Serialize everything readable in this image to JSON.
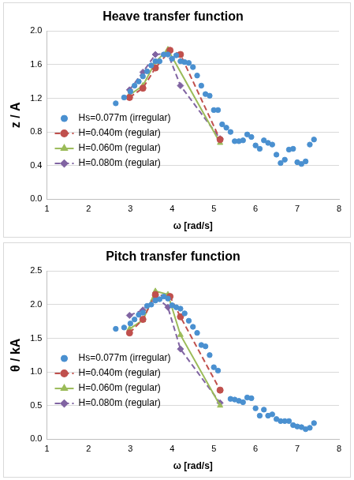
{
  "chart_data": [
    {
      "type": "scatter",
      "title": "Heave transfer function",
      "x_label": "ω [rad/s]",
      "y_label": "z / A",
      "xlim": [
        1,
        8
      ],
      "xticks": [
        1,
        2,
        3,
        4,
        5,
        6,
        7,
        8
      ],
      "ylim": [
        0,
        2
      ],
      "yticks": [
        {
          "value": 0,
          "label": "0.0"
        },
        0.4,
        0.8,
        1.2,
        1.6,
        {
          "value": 2,
          "label": "2.0"
        }
      ],
      "grid": "y",
      "legend": "lower left",
      "series": [
        {
          "name": "Hs=0.077m (irregular)",
          "type": "scatter",
          "color": "#4a90d0",
          "marker": "circle",
          "line_style": "none",
          "x": [
            2.65,
            2.85,
            3.0,
            3.1,
            3.2,
            3.3,
            3.4,
            3.5,
            3.6,
            3.7,
            3.8,
            3.9,
            4.0,
            4.1,
            4.2,
            4.3,
            4.4,
            4.5,
            4.6,
            4.7,
            4.8,
            4.9,
            5.0,
            5.1,
            5.2,
            5.3,
            5.4,
            5.5,
            5.6,
            5.7,
            5.8,
            5.9,
            6.0,
            6.1,
            6.2,
            6.3,
            6.4,
            6.5,
            6.6,
            6.7,
            6.8,
            6.9,
            7.0,
            7.1,
            7.2,
            7.3,
            7.4
          ],
          "values": [
            1.14,
            1.21,
            1.28,
            1.35,
            1.4,
            1.46,
            1.52,
            1.59,
            1.64,
            1.64,
            1.72,
            1.72,
            1.67,
            1.71,
            1.64,
            1.63,
            1.62,
            1.57,
            1.47,
            1.35,
            1.25,
            1.23,
            1.06,
            1.06,
            0.89,
            0.85,
            0.8,
            0.69,
            0.69,
            0.7,
            0.77,
            0.74,
            0.64,
            0.6,
            0.7,
            0.67,
            0.65,
            0.53,
            0.43,
            0.47,
            0.59,
            0.6,
            0.44,
            0.42,
            0.45,
            0.65,
            0.71
          ]
        },
        {
          "name": "H=0.040m (regular)",
          "type": "line",
          "color": "#c0504d",
          "marker": "circle",
          "line_style": "dashed",
          "x": [
            2.98,
            3.3,
            3.6,
            3.95,
            4.2,
            5.15
          ],
          "values": [
            1.21,
            1.32,
            1.56,
            1.77,
            1.72,
            0.71
          ]
        },
        {
          "name": "H=0.060m (regular)",
          "type": "line",
          "color": "#9bbb59",
          "marker": "triangle",
          "line_style": "solid",
          "x": [
            2.98,
            3.3,
            3.6,
            3.9,
            5.15
          ],
          "values": [
            1.24,
            1.35,
            1.63,
            1.78,
            0.67
          ]
        },
        {
          "name": "H=0.080m (regular)",
          "type": "line",
          "color": "#8064a2",
          "marker": "diamond",
          "line_style": "dashed",
          "x": [
            2.98,
            3.3,
            3.6,
            3.9,
            4.2,
            5.15
          ],
          "values": [
            1.3,
            1.51,
            1.72,
            1.73,
            1.35,
            0.72
          ]
        }
      ]
    },
    {
      "type": "scatter",
      "title": "Pitch transfer function",
      "x_label": "ω [rad/s]",
      "y_label": "θ / kA",
      "xlim": [
        1,
        8
      ],
      "xticks": [
        1,
        2,
        3,
        4,
        5,
        6,
        7,
        8
      ],
      "ylim": [
        0,
        2.5
      ],
      "yticks": [
        {
          "value": 0,
          "label": "0.0"
        },
        0.5,
        {
          "value": 1,
          "label": "1.0"
        },
        1.5,
        {
          "value": 2,
          "label": "2.0"
        },
        2.5
      ],
      "grid": "y",
      "legend": "lower left",
      "series": [
        {
          "name": "Hs=0.077m (irregular)",
          "type": "scatter",
          "color": "#4a90d0",
          "marker": "circle",
          "line_style": "none",
          "x": [
            2.65,
            2.85,
            3.0,
            3.1,
            3.2,
            3.3,
            3.4,
            3.5,
            3.6,
            3.7,
            3.8,
            3.9,
            4.0,
            4.1,
            4.2,
            4.3,
            4.4,
            4.5,
            4.6,
            4.7,
            4.8,
            4.9,
            5.0,
            5.1,
            5.4,
            5.5,
            5.6,
            5.7,
            5.8,
            5.9,
            6.0,
            6.1,
            6.2,
            6.3,
            6.4,
            6.5,
            6.6,
            6.7,
            6.8,
            6.9,
            7.0,
            7.1,
            7.2,
            7.3,
            7.4
          ],
          "values": [
            1.64,
            1.66,
            1.72,
            1.78,
            1.85,
            1.88,
            1.98,
            2.0,
            2.06,
            2.08,
            2.12,
            2.09,
            1.99,
            1.96,
            1.94,
            1.87,
            1.76,
            1.67,
            1.58,
            1.4,
            1.38,
            1.25,
            1.07,
            1.02,
            0.6,
            0.59,
            0.57,
            0.55,
            0.62,
            0.61,
            0.46,
            0.35,
            0.44,
            0.35,
            0.37,
            0.3,
            0.27,
            0.27,
            0.27,
            0.21,
            0.19,
            0.18,
            0.15,
            0.17,
            0.24
          ]
        },
        {
          "name": "H=0.040m (regular)",
          "type": "line",
          "color": "#c0504d",
          "marker": "circle",
          "line_style": "dashed",
          "x": [
            2.98,
            3.3,
            3.6,
            3.95,
            4.2,
            5.15
          ],
          "values": [
            1.58,
            1.78,
            2.15,
            2.12,
            1.82,
            0.73
          ]
        },
        {
          "name": "H=0.060m (regular)",
          "type": "line",
          "color": "#9bbb59",
          "marker": "triangle",
          "line_style": "solid",
          "x": [
            2.98,
            3.3,
            3.6,
            3.9,
            4.2,
            5.15
          ],
          "values": [
            1.64,
            1.77,
            2.2,
            2.15,
            1.55,
            0.5
          ]
        },
        {
          "name": "H=0.080m (regular)",
          "type": "line",
          "color": "#8064a2",
          "marker": "diamond",
          "line_style": "dashed",
          "x": [
            2.98,
            3.3,
            3.6,
            3.9,
            4.2,
            5.15
          ],
          "values": [
            1.84,
            1.92,
            2.13,
            1.96,
            1.34,
            0.54
          ]
        }
      ]
    }
  ]
}
